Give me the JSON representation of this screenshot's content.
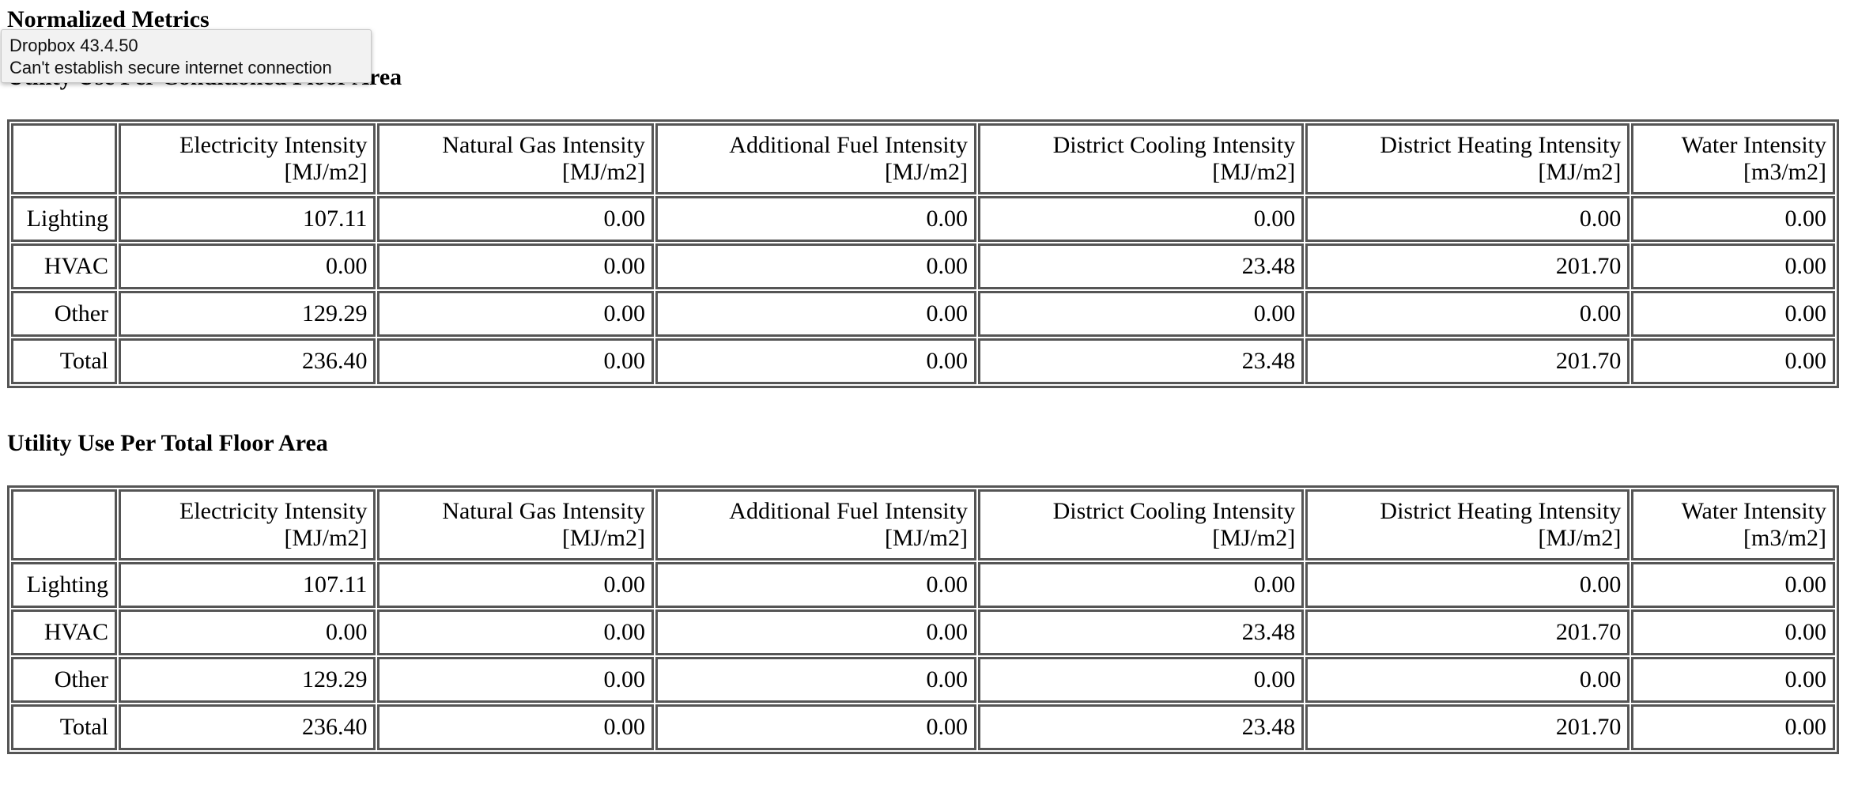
{
  "page": {
    "title": "Normalized Metrics"
  },
  "tooltip": {
    "app_line": "Dropbox 43.4.50",
    "message_line": "Can't establish secure internet connection"
  },
  "tables": [
    {
      "title": "Utility Use Per Conditioned Floor Area",
      "columns": [
        {
          "name": "Electricity Intensity",
          "unit": "[MJ/m2]"
        },
        {
          "name": "Natural Gas Intensity",
          "unit": "[MJ/m2]"
        },
        {
          "name": "Additional Fuel Intensity",
          "unit": "[MJ/m2]"
        },
        {
          "name": "District Cooling Intensity",
          "unit": "[MJ/m2]"
        },
        {
          "name": "District Heating Intensity",
          "unit": "[MJ/m2]"
        },
        {
          "name": "Water Intensity",
          "unit": "[m3/m2]"
        }
      ],
      "rows": [
        {
          "label": "Lighting",
          "values": [
            "107.11",
            "0.00",
            "0.00",
            "0.00",
            "0.00",
            "0.00"
          ]
        },
        {
          "label": "HVAC",
          "values": [
            "0.00",
            "0.00",
            "0.00",
            "23.48",
            "201.70",
            "0.00"
          ]
        },
        {
          "label": "Other",
          "values": [
            "129.29",
            "0.00",
            "0.00",
            "0.00",
            "0.00",
            "0.00"
          ]
        },
        {
          "label": "Total",
          "values": [
            "236.40",
            "0.00",
            "0.00",
            "23.48",
            "201.70",
            "0.00"
          ]
        }
      ]
    },
    {
      "title": "Utility Use Per Total Floor Area",
      "columns": [
        {
          "name": "Electricity Intensity",
          "unit": "[MJ/m2]"
        },
        {
          "name": "Natural Gas Intensity",
          "unit": "[MJ/m2]"
        },
        {
          "name": "Additional Fuel Intensity",
          "unit": "[MJ/m2]"
        },
        {
          "name": "District Cooling Intensity",
          "unit": "[MJ/m2]"
        },
        {
          "name": "District Heating Intensity",
          "unit": "[MJ/m2]"
        },
        {
          "name": "Water Intensity",
          "unit": "[m3/m2]"
        }
      ],
      "rows": [
        {
          "label": "Lighting",
          "values": [
            "107.11",
            "0.00",
            "0.00",
            "0.00",
            "0.00",
            "0.00"
          ]
        },
        {
          "label": "HVAC",
          "values": [
            "0.00",
            "0.00",
            "0.00",
            "23.48",
            "201.70",
            "0.00"
          ]
        },
        {
          "label": "Other",
          "values": [
            "129.29",
            "0.00",
            "0.00",
            "0.00",
            "0.00",
            "0.00"
          ]
        },
        {
          "label": "Total",
          "values": [
            "236.40",
            "0.00",
            "0.00",
            "23.48",
            "201.70",
            "0.00"
          ]
        }
      ]
    }
  ]
}
